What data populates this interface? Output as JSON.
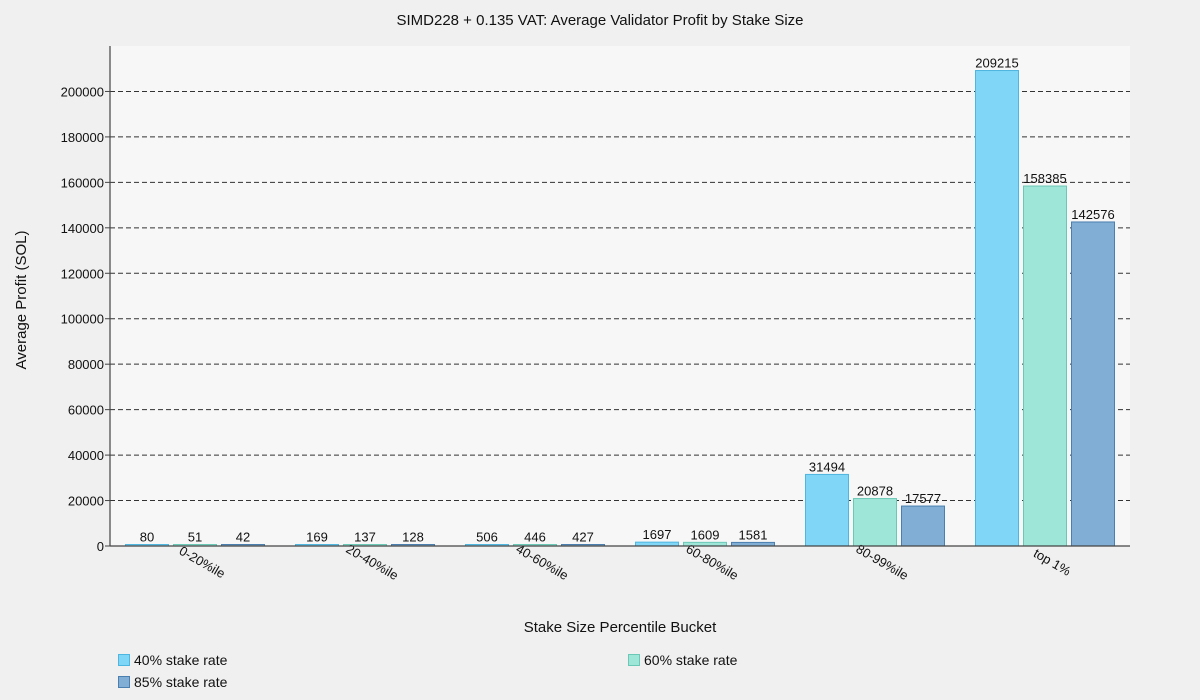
{
  "chart_data": {
    "type": "bar",
    "title": "SIMD228 + 0.135 VAT: Average Validator Profit by Stake Size",
    "xlabel": "Stake Size Percentile Bucket",
    "ylabel": "Average Profit (SOL)",
    "categories": [
      "0-20%ile",
      "20-40%ile",
      "40-60%ile",
      "60-80%ile",
      "80-99%ile",
      "top 1%"
    ],
    "ylim": [
      -2000,
      220000
    ],
    "yticks": [
      0,
      20000,
      40000,
      60000,
      80000,
      100000,
      120000,
      140000,
      160000,
      180000,
      200000
    ],
    "grid": "horizontal dashed",
    "legend_position": "bottom",
    "series": [
      {
        "name": "40% stake rate",
        "values": [
          80,
          169,
          506,
          1697,
          31494,
          209215
        ],
        "color": "#7fd6f7",
        "stroke": "#4fb6e0"
      },
      {
        "name": "60% stake rate",
        "values": [
          51,
          137,
          446,
          1609,
          20878,
          158385
        ],
        "color": "#9ee6d8",
        "stroke": "#6cc8b6"
      },
      {
        "name": "85% stake rate",
        "values": [
          42,
          128,
          427,
          1581,
          17577,
          142576
        ],
        "color": "#80aed4",
        "stroke": "#4a7fb0"
      }
    ]
  }
}
